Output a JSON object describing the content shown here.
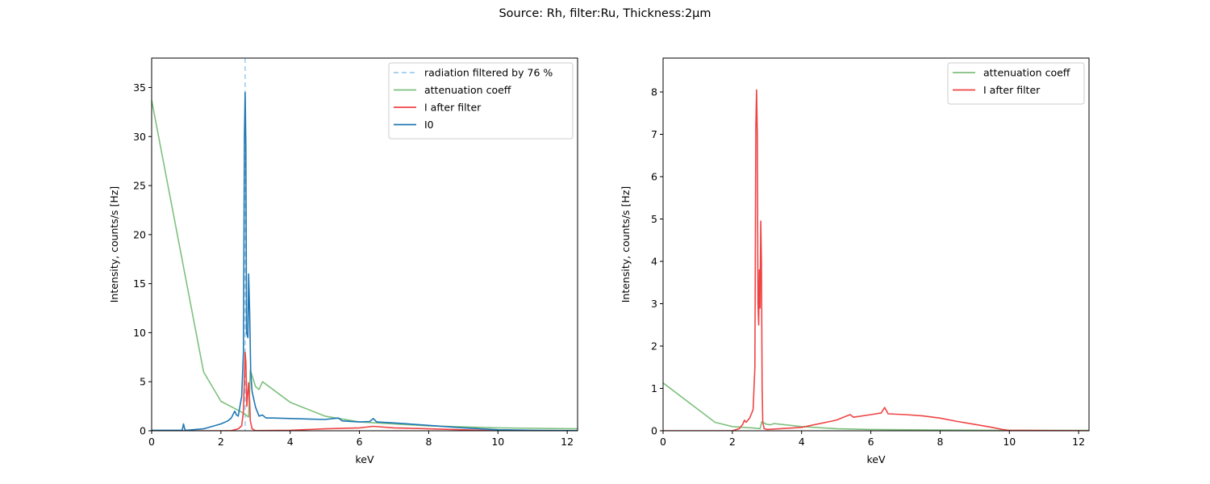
{
  "figure": {
    "suptitle": "Source: Rh, filter:Ru, Thickness:2µm",
    "colors": {
      "I0": "#1f77b4",
      "I_after_filter": "#f04444",
      "attenuation": "#7fc07f",
      "cutoff_line": "#9ccbef"
    }
  },
  "chart_data": [
    {
      "type": "line",
      "title": "",
      "xlabel": "keV",
      "ylabel": "Intensity, counts/s [Hz]",
      "xlim": [
        0,
        12.3
      ],
      "ylim": [
        0,
        38
      ],
      "xticks": [
        0,
        2,
        4,
        6,
        8,
        10,
        12
      ],
      "yticks": [
        0,
        5,
        10,
        15,
        20,
        25,
        30,
        35
      ],
      "grid": false,
      "legend_position": "top-right",
      "vertical_line": {
        "x": 2.7,
        "label": "radiation filtered by 76 %"
      },
      "series": [
        {
          "name": "attenuation coeff",
          "color_key": "attenuation",
          "x": [
            0,
            1.5,
            2.0,
            2.6,
            2.8,
            2.85,
            3.0,
            3.1,
            3.2,
            4.0,
            5.0,
            6.0,
            8.0,
            10.0,
            12.3
          ],
          "y": [
            33.7,
            6.0,
            3.0,
            1.9,
            1.4,
            6.2,
            4.5,
            4.2,
            5.0,
            2.9,
            1.5,
            0.9,
            0.5,
            0.3,
            0.2
          ]
        },
        {
          "name": "I after filter",
          "color_key": "I_after_filter",
          "x": [
            0,
            2.0,
            2.3,
            2.4,
            2.5,
            2.6,
            2.65,
            2.7,
            2.72,
            2.75,
            2.8,
            2.83,
            2.85,
            2.9,
            3.0,
            4.0,
            5.0,
            6.0,
            6.4,
            7.0,
            8.0,
            9.0,
            10.0,
            12.3
          ],
          "y": [
            0,
            0.0,
            0.02,
            0.1,
            0.2,
            0.5,
            2.0,
            8.0,
            7.0,
            2.5,
            4.9,
            3.0,
            1.0,
            0.2,
            0.02,
            0.05,
            0.2,
            0.3,
            0.45,
            0.3,
            0.2,
            0.1,
            0.0,
            0.0
          ]
        },
        {
          "name": "I0",
          "color_key": "I0",
          "x": [
            0,
            0.88,
            0.92,
            0.96,
            1.0,
            1.5,
            2.0,
            2.2,
            2.3,
            2.4,
            2.45,
            2.5,
            2.6,
            2.65,
            2.68,
            2.7,
            2.72,
            2.74,
            2.78,
            2.8,
            2.83,
            2.86,
            2.9,
            3.0,
            3.1,
            3.2,
            3.3,
            3.5,
            4.0,
            5.0,
            5.4,
            5.5,
            6.0,
            6.3,
            6.4,
            6.5,
            7.0,
            8.0,
            9.0,
            10.0,
            11.0,
            12.3
          ],
          "y": [
            0.05,
            0.05,
            0.7,
            0.1,
            0.05,
            0.2,
            0.7,
            1.0,
            1.3,
            2.0,
            1.6,
            1.5,
            3.5,
            8.0,
            30.0,
            34.5,
            29.0,
            10.0,
            9.5,
            16.0,
            12.0,
            6.0,
            4.0,
            2.4,
            1.5,
            1.6,
            1.3,
            1.3,
            1.25,
            1.15,
            1.3,
            1.0,
            0.9,
            0.95,
            1.25,
            0.9,
            0.8,
            0.55,
            0.3,
            0.1,
            0.05,
            0.02
          ]
        }
      ]
    },
    {
      "type": "line",
      "title": "",
      "xlabel": "keV",
      "ylabel": "Intensity, counts/s [Hz]",
      "xlim": [
        0,
        12.3
      ],
      "ylim": [
        0,
        8.8
      ],
      "xticks": [
        0,
        2,
        4,
        6,
        8,
        10,
        12
      ],
      "yticks": [
        0,
        1,
        2,
        3,
        4,
        5,
        6,
        7,
        8
      ],
      "grid": false,
      "legend_position": "top-right",
      "series": [
        {
          "name": "attenuation coeff",
          "color_key": "attenuation",
          "x": [
            0,
            1.5,
            2.0,
            2.6,
            2.8,
            2.85,
            3.0,
            3.1,
            3.2,
            4.0,
            5.0,
            6.0,
            8.0,
            10.0,
            12.3
          ],
          "y": [
            1.13,
            0.2,
            0.1,
            0.065,
            0.05,
            0.21,
            0.15,
            0.14,
            0.17,
            0.1,
            0.05,
            0.03,
            0.017,
            0.01,
            0.007
          ]
        },
        {
          "name": "I after filter",
          "color_key": "I_after_filter",
          "x": [
            0,
            2.0,
            2.2,
            2.3,
            2.35,
            2.4,
            2.5,
            2.6,
            2.65,
            2.68,
            2.7,
            2.72,
            2.74,
            2.76,
            2.78,
            2.8,
            2.82,
            2.84,
            2.86,
            2.88,
            2.92,
            3.0,
            4.0,
            5.0,
            5.4,
            5.5,
            6.0,
            6.3,
            6.4,
            6.5,
            7.0,
            7.5,
            8.0,
            8.5,
            9.0,
            9.5,
            9.8,
            10.0,
            12.3
          ],
          "y": [
            0,
            0.0,
            0.05,
            0.15,
            0.25,
            0.2,
            0.3,
            0.5,
            1.5,
            7.2,
            8.05,
            7.0,
            3.0,
            2.5,
            3.8,
            2.9,
            4.95,
            4.0,
            1.0,
            0.2,
            0.05,
            0.03,
            0.08,
            0.25,
            0.38,
            0.32,
            0.38,
            0.42,
            0.55,
            0.4,
            0.38,
            0.35,
            0.3,
            0.22,
            0.15,
            0.08,
            0.03,
            0.01,
            0.0
          ]
        }
      ]
    }
  ]
}
